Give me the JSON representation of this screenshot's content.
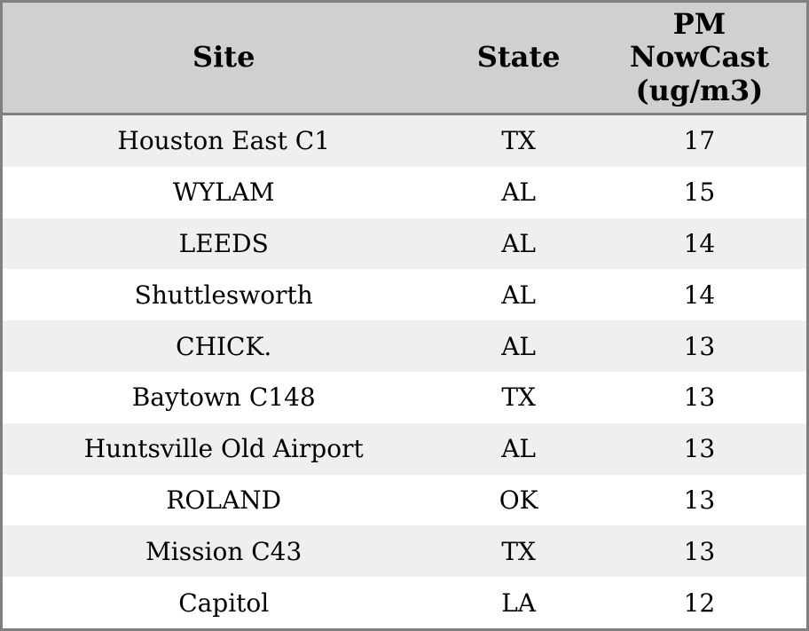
{
  "chart_data": {
    "type": "table",
    "title": "",
    "columns": [
      "Site",
      "State",
      "PM NowCast (ug/m3)"
    ],
    "rows": [
      [
        "Houston East C1",
        "TX",
        "17"
      ],
      [
        "WYLAM",
        "AL",
        "15"
      ],
      [
        "LEEDS",
        "AL",
        "14"
      ],
      [
        "Shuttlesworth",
        "AL",
        "14"
      ],
      [
        "CHICK.",
        "AL",
        "13"
      ],
      [
        "Baytown C148",
        "TX",
        "13"
      ],
      [
        "Huntsville Old Airport",
        "AL",
        "13"
      ],
      [
        "ROLAND",
        "OK",
        "13"
      ],
      [
        "Mission C43",
        "TX",
        "13"
      ],
      [
        "Capitol",
        "LA",
        "12"
      ]
    ],
    "layout": {
      "striped": true,
      "stripe_pattern": "odd-rows-gray",
      "all_cells_centered": true
    }
  },
  "colors": {
    "header_background": "#d0d0d0",
    "stripe_row_background": "#efefef",
    "plain_row_background": "#ffffff",
    "border": "#808080",
    "text": "#000000"
  }
}
